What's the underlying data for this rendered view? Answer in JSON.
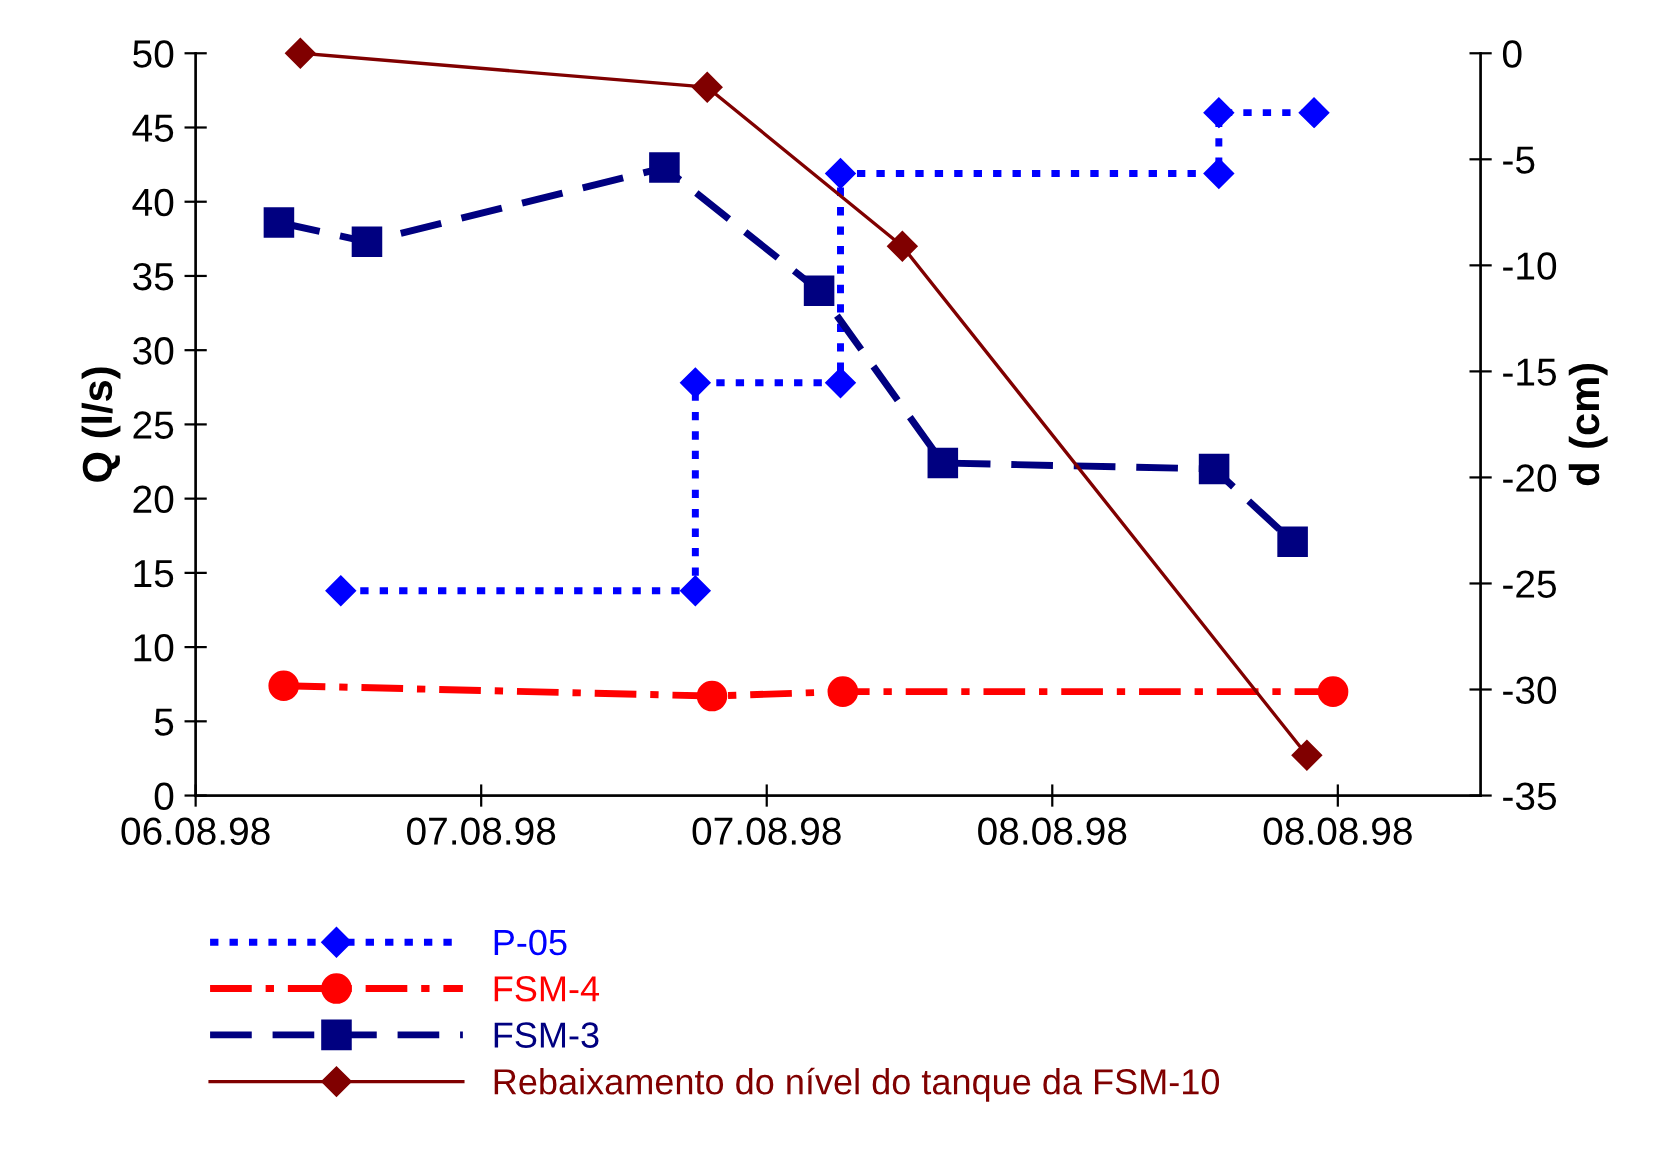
{
  "chart_data": {
    "type": "line",
    "ylabel": "Q (l/s)",
    "y2label": "d (cm)",
    "xlim": [
      "1998-08-06T12:00",
      "1998-08-08T18:00"
    ],
    "xticks": [
      {
        "value": "1998-08-06T12:00",
        "label": "06.08.98"
      },
      {
        "value": "1998-08-07T00:00",
        "label": "07.08.98"
      },
      {
        "value": "1998-08-07T12:00",
        "label": "07.08.98"
      },
      {
        "value": "1998-08-08T00:00",
        "label": "08.08.98"
      },
      {
        "value": "1998-08-08T12:00",
        "label": "08.08.98"
      }
    ],
    "ylim": [
      0,
      50
    ],
    "yticks": [
      0,
      5,
      10,
      15,
      20,
      25,
      30,
      35,
      40,
      45,
      50
    ],
    "y2lim": [
      -35,
      0
    ],
    "y2ticks": [
      -35,
      -30,
      -25,
      -20,
      -15,
      -10,
      -5,
      0
    ],
    "grid": false,
    "legend": "bottom",
    "series": [
      {
        "name": "P-05",
        "color": "#0000ff",
        "marker": "diamond",
        "line_style": "dotted",
        "x": [
          "1998-08-06T18:06",
          "1998-08-07T09:00",
          "1998-08-07T09:00",
          "1998-08-07T15:06",
          "1998-08-07T15:06",
          "1998-08-08T07:00",
          "1998-08-08T07:00",
          "1998-08-08T11:00"
        ],
        "values": [
          13.8,
          13.8,
          27.8,
          27.8,
          41.9,
          41.9,
          46.0,
          46.0
        ]
      },
      {
        "name": "FSM-4",
        "color": "#ff0000",
        "marker": "circle",
        "line_style": "dashdot",
        "x": [
          "1998-08-06T15:42",
          "1998-08-07T09:42",
          "1998-08-07T15:12",
          "1998-08-08T11:48"
        ],
        "values": [
          7.4,
          6.7,
          7.0,
          7.0
        ]
      },
      {
        "name": "FSM-3",
        "color": "#000080",
        "marker": "square",
        "line_style": "dashed",
        "x": [
          "1998-08-06T15:30",
          "1998-08-06T19:12",
          "1998-08-07T07:42",
          "1998-08-07T14:12",
          "1998-08-07T19:24",
          "1998-08-08T06:48",
          "1998-08-08T10:06"
        ],
        "values": [
          38.6,
          37.3,
          42.3,
          34.0,
          22.4,
          22.0,
          17.1
        ]
      },
      {
        "name": "Rebaixamento do nível do tanque da FSM-10",
        "color": "#800000",
        "marker": "diamond",
        "line_style": "solid",
        "axis": "y2",
        "x": [
          "1998-08-06T16:24",
          "1998-08-07T09:30",
          "1998-08-07T17:42",
          "1998-08-08T10:42"
        ],
        "values": [
          0,
          -1.6,
          -9.1,
          -33.1
        ]
      }
    ]
  }
}
